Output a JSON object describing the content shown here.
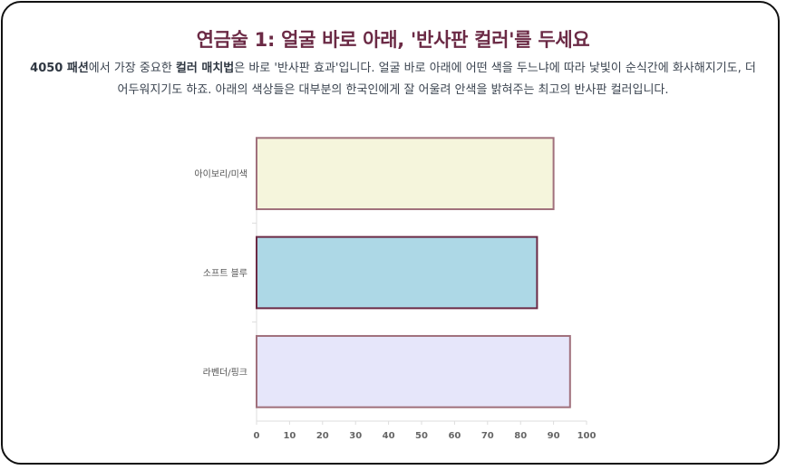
{
  "title": "연금술 1: 얼굴 바로 아래, '반사판 컬러'를 두세요",
  "description": {
    "bold1": "4050 패션",
    "text1": "에서 가장 중요한 ",
    "bold2": "컬러 매치법",
    "text2": "은 바로 '반사판 효과'입니다. 얼굴 바로 아래에 어떤 색을 두느냐에 따라 낯빛이 순식간에 화사해지기도, 더 어두워지기도 하죠. 아래의 색상들은 대부분의 한국인에게 잘 어울려 안색을 밝혀주는 최고의 반사판 컬러입니다."
  },
  "chart_data": {
    "type": "bar",
    "orientation": "horizontal",
    "categories": [
      "아이보리/미색",
      "소프트 블루",
      "라벤더/핑크"
    ],
    "values": [
      90,
      85,
      95
    ],
    "colors": [
      "#f5f5dc",
      "#add8e6",
      "#e6e6fa"
    ],
    "border_colors": [
      "#a0707c",
      "#6b2a45",
      "#a0707c"
    ],
    "xlim": [
      0,
      100
    ],
    "xticks": [
      0,
      10,
      20,
      30,
      40,
      50,
      60,
      70,
      80,
      90,
      100
    ],
    "grid": false,
    "legend": "none"
  }
}
